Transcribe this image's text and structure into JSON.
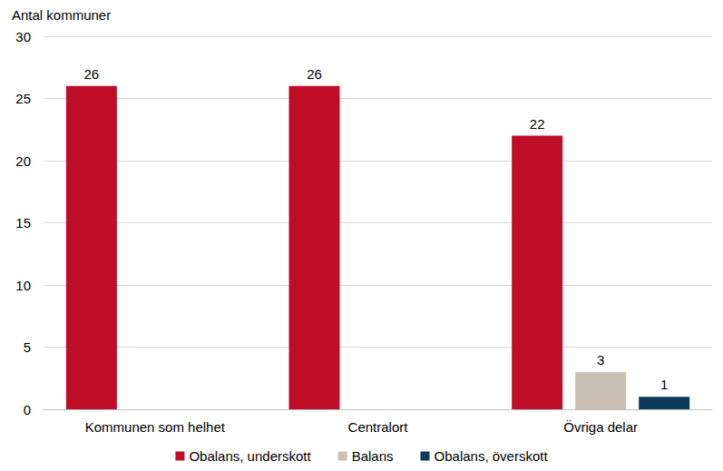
{
  "chart_data": {
    "type": "bar",
    "y_label": "Antal kommuner",
    "categories": [
      "Kommunen som helhet",
      "Centralort",
      "Övriga delar"
    ],
    "series": [
      {
        "name": "Obalans, underskott",
        "color": "#c00d27",
        "values": [
          26,
          26,
          22
        ]
      },
      {
        "name": "Balans",
        "color": "#c9bfb4",
        "values": [
          null,
          null,
          3
        ]
      },
      {
        "name": "Obalans, överskott",
        "color": "#0c3a5b",
        "values": [
          null,
          null,
          1
        ]
      }
    ],
    "ylim": [
      0,
      30
    ],
    "yticks": [
      0,
      5,
      10,
      15,
      20,
      25,
      30
    ],
    "grid": true,
    "legend": "bottom",
    "data_labels": true
  }
}
